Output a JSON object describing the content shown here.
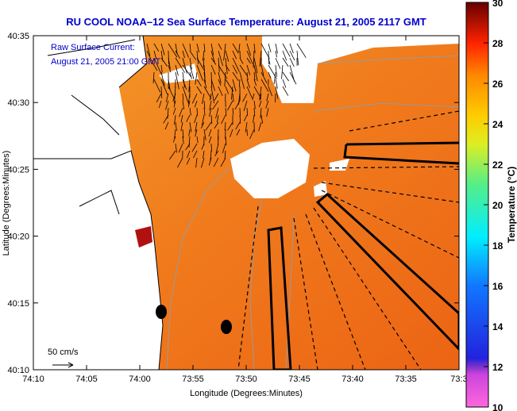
{
  "title": "RU COOL  NOAA–12  Sea Surface Temperature:  August 21, 2005 2117 GMT",
  "annotations": {
    "current_label": "Raw Surface Current:",
    "current_time": "August 21, 2005 21:00 GMT",
    "scale_label": "50 cm/s"
  },
  "chart_data": {
    "type": "heatmap",
    "title": "RU COOL  NOAA–12  Sea Surface Temperature:  August 21, 2005 2117 GMT",
    "xlabel": "Longitude (Degrees:Minutes)",
    "ylabel": "Latitude (Degrees:Minutes)",
    "x_ticks": [
      "74:10",
      "74:05",
      "74:00",
      "73:55",
      "73:50",
      "73:45",
      "73:40",
      "73:35",
      "73:3"
    ],
    "y_ticks": [
      "40:35",
      "40:30",
      "40:25",
      "40:20",
      "40:15",
      "40:10"
    ],
    "colorbar": {
      "label": "Temperature (°C)",
      "ticks": [
        "30",
        "28",
        "26",
        "24",
        "22",
        "20",
        "18",
        "16",
        "14",
        "12",
        "10"
      ],
      "range": [
        10,
        30
      ]
    },
    "dominant_sst_c": 25.5,
    "overlay": "surface current vectors"
  }
}
